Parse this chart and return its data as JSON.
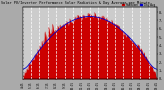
{
  "title": "Solar PV/Inverter Performance Solar Radiation & Day Average per Minute",
  "bg_color": "#aaaaaa",
  "plot_bg": "#cccccc",
  "grid_color": "#ffffff",
  "fill_color": "#cc0000",
  "line_color": "#cc0000",
  "avg_line_color": "#0000cc",
  "text_color": "#000000",
  "ylabel_right_values": [
    "8.",
    "7.",
    "6.",
    "5.",
    "4.",
    "3.",
    "2.",
    "1.",
    "0."
  ],
  "ylabel_right_nums": [
    800,
    700,
    600,
    500,
    400,
    300,
    200,
    100,
    0
  ],
  "ymax": 860,
  "ymin": 0,
  "legend_labels": [
    "Radiation",
    "Day Avg"
  ],
  "legend_colors": [
    "#cc0000",
    "#0000cc"
  ],
  "time_labels": [
    "4:45",
    "5:15",
    "6:15",
    "7:15",
    "8:15",
    "9:15",
    "10:15",
    "11:15",
    "12:15",
    "13:15",
    "14:15",
    "15:15",
    "16:15",
    "17:15",
    "18:15",
    "19:15",
    "19:45"
  ],
  "n_points": 180
}
